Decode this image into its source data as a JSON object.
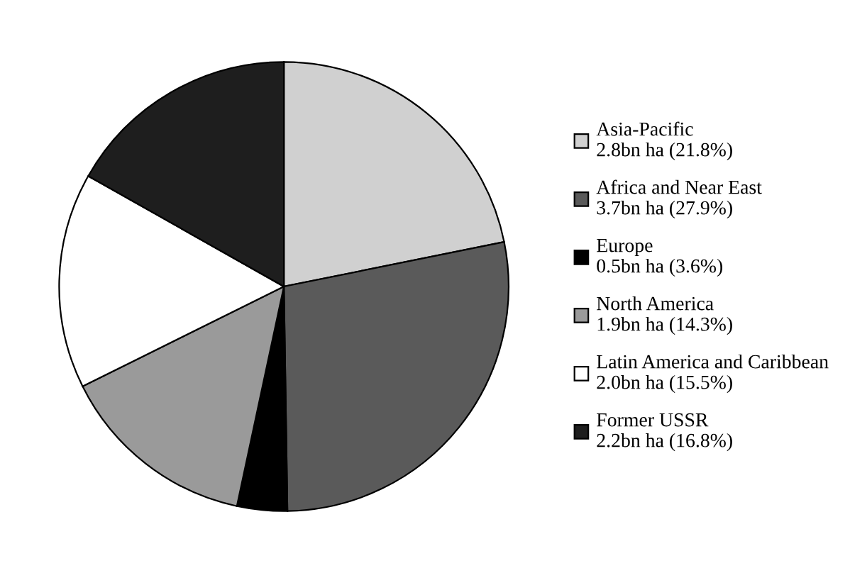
{
  "chart_data": {
    "type": "pie",
    "categories": [
      "Asia-Pacific",
      "Africa and Near East",
      "Europe",
      "North America",
      "Latin America and Caribbean",
      "Former USSR"
    ],
    "values": [
      21.8,
      27.9,
      3.6,
      14.3,
      15.5,
      16.8
    ],
    "value_labels": [
      "2.8bn ha (21.8%)",
      "3.7bn ha (27.9%)",
      "0.5bn ha (3.6%)",
      "1.9bn ha (14.3%)",
      "2.0bn ha (15.5%)",
      "2.2bn ha (16.8%)"
    ],
    "colors": [
      "#d0d0d0",
      "#5a5a5a",
      "#000000",
      "#9a9a9a",
      "#ffffff",
      "#1e1e1e"
    ],
    "legend": "right"
  }
}
